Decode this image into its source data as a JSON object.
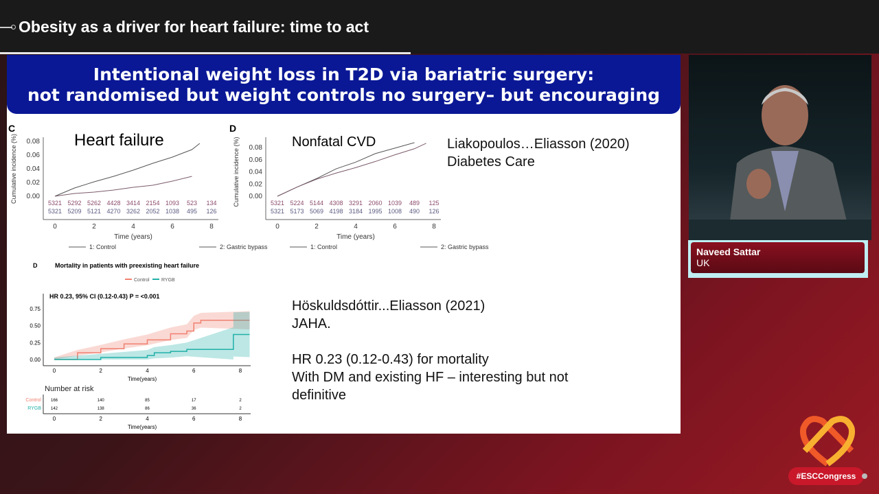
{
  "header": {
    "title": "Obesity as a driver for heart failure: time to act"
  },
  "slide": {
    "banner": [
      "Intentional weight loss in T2D via bariatric surgery:",
      "not randomised but weight controls no surgery– but encouraging"
    ],
    "ref1": [
      "Liakopoulos…Eliasson  (2020)",
      "Diabetes Care"
    ],
    "ref2": [
      "Höskuldsdóttir...Eliasson (2021)",
      "JAHA."
    ],
    "notes": [
      "HR 0.23 (0.12-0.43) for mortality",
      "With DM and existing HF – interesting but not",
      "definitive"
    ]
  },
  "speaker": {
    "name": "Naveed Sattar",
    "country": "UK"
  },
  "branding": {
    "hashtag": "#ESCCongress",
    "accent": "#c8182a"
  },
  "chart_data": [
    {
      "type": "line",
      "panel": "C",
      "title": "Heart failure",
      "xlabel": "Time (years)",
      "ylabel": "Cumulative incidence (%)",
      "xlim": [
        0,
        8
      ],
      "ylim": [
        0,
        0.08
      ],
      "xticks": [
        0,
        2,
        4,
        6,
        8
      ],
      "yticks": [
        "0.00",
        "0.02",
        "0.04",
        "0.06",
        "0.08"
      ],
      "series": [
        {
          "name": "1: Control",
          "x": [
            0,
            1,
            2,
            3,
            4,
            5,
            6,
            7,
            7.4
          ],
          "y": [
            0,
            0.012,
            0.021,
            0.029,
            0.038,
            0.048,
            0.057,
            0.068,
            0.077
          ]
        },
        {
          "name": "2: Gastric bypass",
          "x": [
            0,
            1,
            2,
            3,
            4,
            5,
            6,
            7
          ],
          "y": [
            0,
            0.004,
            0.006,
            0.009,
            0.013,
            0.016,
            0.022,
            0.029
          ]
        }
      ],
      "risk": [
        [
          "5321",
          "5292",
          "5262",
          "4428",
          "3414",
          "2154",
          "1093",
          "523",
          "134"
        ],
        [
          "5321",
          "5209",
          "5121",
          "4270",
          "3262",
          "2052",
          "1038",
          "495",
          "126"
        ]
      ]
    },
    {
      "type": "line",
      "panel": "D",
      "title": "Nonfatal CVD",
      "xlabel": "Time (years)",
      "ylabel": "Cumulative incidence (%)",
      "xlim": [
        0,
        8
      ],
      "ylim": [
        0,
        0.08
      ],
      "xticks": [
        0,
        2,
        4,
        6,
        8
      ],
      "yticks": [
        "0.00",
        "0.02",
        "0.04",
        "0.06",
        "0.08"
      ],
      "series": [
        {
          "name": "1: Control",
          "x": [
            0,
            1,
            2,
            3,
            4,
            5,
            6,
            7
          ],
          "y": [
            0,
            0.015,
            0.029,
            0.045,
            0.056,
            0.07,
            0.079,
            0.088
          ]
        },
        {
          "name": "2: Gastric bypass",
          "x": [
            0,
            1,
            2,
            3,
            4,
            5,
            6,
            7,
            7.6
          ],
          "y": [
            0,
            0.015,
            0.028,
            0.038,
            0.047,
            0.057,
            0.068,
            0.078,
            0.087
          ]
        }
      ],
      "risk": [
        [
          "5321",
          "5224",
          "5144",
          "4308",
          "3291",
          "2060",
          "1039",
          "489",
          "125"
        ],
        [
          "5321",
          "5173",
          "5069",
          "4198",
          "3184",
          "1995",
          "1008",
          "490",
          "126"
        ]
      ]
    },
    {
      "type": "line",
      "panel": "D",
      "title": "Mortality in patients with  preexisting heart failure",
      "annotation": "HR 0.23, 95% CI (0.12-0.43) P = <0.001",
      "xlabel": "Time(years)",
      "xlim": [
        0,
        8.4
      ],
      "ylim": [
        0,
        0.9
      ],
      "xticks": [
        0,
        2,
        4,
        6,
        8
      ],
      "yticks": [
        "0.00",
        "0.25",
        "0.50",
        "0.75"
      ],
      "risk_title": "Number at risk",
      "series": [
        {
          "name": "Control",
          "color": "#f08070",
          "x": [
            0,
            1,
            2,
            3,
            4,
            5,
            5.7,
            6,
            6.3,
            8.4
          ],
          "y": [
            0,
            0.1,
            0.16,
            0.23,
            0.29,
            0.38,
            0.42,
            0.54,
            0.58,
            0.58
          ]
        },
        {
          "name": "RYGB",
          "color": "#20b0a8",
          "x": [
            0,
            2,
            4,
            4.3,
            5,
            5.7,
            7.7,
            7.7,
            8.4
          ],
          "y": [
            0,
            0.03,
            0.06,
            0.1,
            0.12,
            0.15,
            0.15,
            0.37,
            0.37
          ]
        }
      ],
      "risk": [
        [
          "166",
          "140",
          "85",
          "17",
          "2"
        ],
        [
          "142",
          "138",
          "86",
          "36",
          "2"
        ]
      ]
    }
  ]
}
